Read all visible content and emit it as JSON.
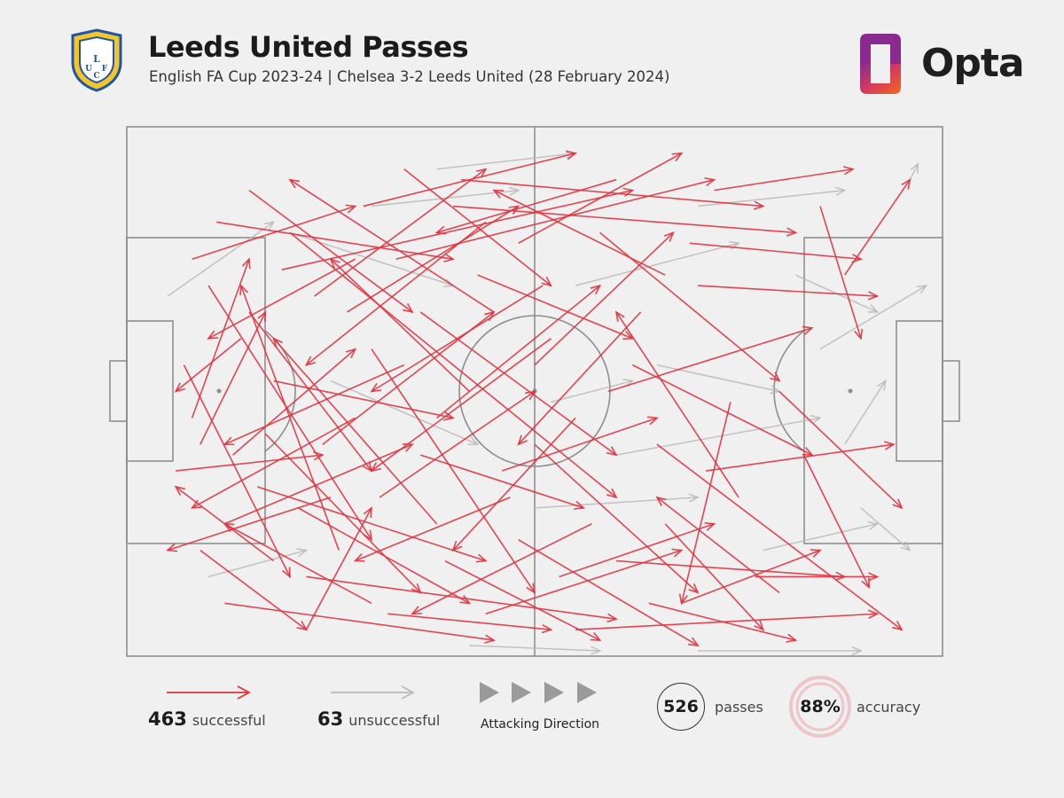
{
  "header": {
    "title": "Leeds United Passes",
    "subtitle": "English FA Cup 2023-24 | Chelsea 3-2 Leeds United (28 February 2024)",
    "brand": "Opta",
    "crest_text": "LUFC"
  },
  "colors": {
    "successful": "#e0323f",
    "unsuccessful": "#b9b9b9",
    "pitch_lines": "#8e8e8e",
    "background": "#f0f0f0",
    "brand_orange": "#f0691c",
    "brand_purple": "#8a2a8f",
    "crest_yellow": "#f4c528",
    "crest_blue": "#1e55a6"
  },
  "legend": {
    "successful_count": "463",
    "successful_label": "successful",
    "unsuccessful_count": "63",
    "unsuccessful_label": "unsuccessful",
    "direction_label": "Attacking Direction"
  },
  "stats": {
    "passes_value": "526",
    "passes_label": "passes",
    "accuracy_value": "88%",
    "accuracy_label": "accuracy"
  },
  "chart_data": {
    "type": "scatter",
    "subtype": "pass-map",
    "x_range": [
      0,
      100
    ],
    "y_range": [
      0,
      100
    ],
    "attacking_direction": "left-to-right",
    "successful_total": 463,
    "unsuccessful_total": 63,
    "total_passes": 526,
    "accuracy_pct": 88,
    "series": [
      {
        "name": "successful",
        "passes": [
          [
            6,
            65,
            24,
            62
          ],
          [
            12,
            90,
            45,
            97
          ],
          [
            30,
            42,
            50,
            88
          ],
          [
            20,
            20,
            60,
            70
          ],
          [
            8,
            55,
            15,
            25
          ],
          [
            15,
            12,
            35,
            35
          ],
          [
            25,
            70,
            5,
            80
          ],
          [
            40,
            15,
            82,
            20
          ],
          [
            55,
            95,
            92,
            92
          ],
          [
            18,
            48,
            40,
            55
          ],
          [
            34,
            8,
            52,
            30
          ],
          [
            45,
            35,
            20,
            10
          ],
          [
            60,
            82,
            88,
            85
          ],
          [
            70,
            30,
            92,
            32
          ],
          [
            28,
            55,
            8,
            72
          ],
          [
            10,
            30,
            30,
            78
          ],
          [
            50,
            60,
            70,
            88
          ],
          [
            38,
            75,
            18,
            40
          ],
          [
            22,
            85,
            60,
            93
          ],
          [
            65,
            60,
            95,
            95
          ],
          [
            80,
            50,
            95,
            72
          ],
          [
            33,
            25,
            72,
            10
          ],
          [
            52,
            40,
            30,
            65
          ],
          [
            16,
            68,
            44,
            82
          ],
          [
            44,
            92,
            68,
            80
          ],
          [
            58,
            20,
            80,
            48
          ],
          [
            75,
            70,
            60,
            35
          ],
          [
            27,
            35,
            48,
            15
          ],
          [
            9,
            80,
            22,
            95
          ],
          [
            36,
            62,
            56,
            72
          ],
          [
            48,
            22,
            68,
            5
          ],
          [
            62,
            45,
            84,
            62
          ],
          [
            14,
            40,
            6,
            50
          ],
          [
            42,
            50,
            25,
            25
          ],
          [
            68,
            90,
            85,
            80
          ],
          [
            85,
            15,
            90,
            40
          ],
          [
            30,
            90,
            12,
            75
          ],
          [
            55,
            55,
            40,
            80
          ],
          [
            19,
            27,
            62,
            12
          ],
          [
            72,
            12,
            89,
            8
          ],
          [
            24,
            60,
            45,
            35
          ],
          [
            8,
            25,
            28,
            15
          ],
          [
            39,
            82,
            58,
            97
          ],
          [
            51,
            30,
            30,
            50
          ],
          [
            66,
            75,
            78,
            95
          ],
          [
            12,
            75,
            35,
            60
          ],
          [
            46,
            65,
            65,
            55
          ],
          [
            29,
            15,
            55,
            5
          ],
          [
            77,
            85,
            92,
            85
          ],
          [
            34,
            45,
            12,
            60
          ],
          [
            60,
            10,
            38,
            20
          ],
          [
            22,
            95,
            30,
            72
          ],
          [
            7,
            45,
            20,
            85
          ],
          [
            43,
            28,
            62,
            40
          ],
          [
            88,
            28,
            96,
            10
          ],
          [
            53,
            85,
            72,
            75
          ],
          [
            17,
            58,
            36,
            88
          ],
          [
            63,
            35,
            48,
            60
          ],
          [
            31,
            70,
            50,
            50
          ],
          [
            74,
            52,
            68,
            90
          ],
          [
            11,
            18,
            40,
            25
          ],
          [
            57,
            75,
            35,
            92
          ],
          [
            41,
            10,
            78,
            15
          ],
          [
            26,
            80,
            14,
            30
          ],
          [
            69,
            22,
            90,
            25
          ],
          [
            36,
            35,
            60,
            62
          ],
          [
            13,
            62,
            28,
            42
          ],
          [
            48,
            78,
            70,
            98
          ],
          [
            80,
            88,
            65,
            70
          ],
          [
            23,
            32,
            44,
            8
          ],
          [
            59,
            50,
            84,
            38
          ],
          [
            32,
            92,
            52,
            95
          ],
          [
            44,
            18,
            22,
            45
          ],
          [
            71,
            65,
            94,
            60
          ],
          [
            18,
            82,
            6,
            68
          ],
          [
            50,
            45,
            67,
            20
          ],
          [
            28,
            25,
            10,
            40
          ],
          [
            64,
            90,
            82,
            97
          ],
          [
            38,
            55,
            58,
            30
          ],
          [
            15,
            35,
            30,
            65
          ],
          [
            83,
            62,
            91,
            87
          ],
          [
            47,
            70,
            28,
            82
          ],
          [
            21,
            72,
            42,
            90
          ],
          [
            66,
            28,
            45,
            12
          ],
          [
            9,
            60,
            17,
            35
          ]
        ]
      },
      {
        "name": "unsuccessful",
        "passes": [
          [
            42,
            98,
            58,
            99
          ],
          [
            70,
            99,
            90,
            99
          ],
          [
            60,
            62,
            85,
            55
          ],
          [
            20,
            20,
            40,
            30
          ],
          [
            55,
            30,
            75,
            22
          ],
          [
            88,
            60,
            93,
            48
          ],
          [
            78,
            80,
            92,
            75
          ],
          [
            38,
            8,
            55,
            5
          ],
          [
            10,
            85,
            22,
            80
          ],
          [
            65,
            45,
            80,
            50
          ],
          [
            90,
            72,
            96,
            80
          ],
          [
            50,
            72,
            70,
            70
          ],
          [
            30,
            15,
            48,
            12
          ],
          [
            82,
            28,
            92,
            35
          ],
          [
            5,
            32,
            18,
            18
          ],
          [
            96,
            10,
            97,
            7
          ],
          [
            52,
            52,
            62,
            48
          ],
          [
            70,
            15,
            88,
            12
          ],
          [
            25,
            48,
            43,
            60
          ],
          [
            85,
            42,
            98,
            30
          ]
        ]
      }
    ]
  }
}
